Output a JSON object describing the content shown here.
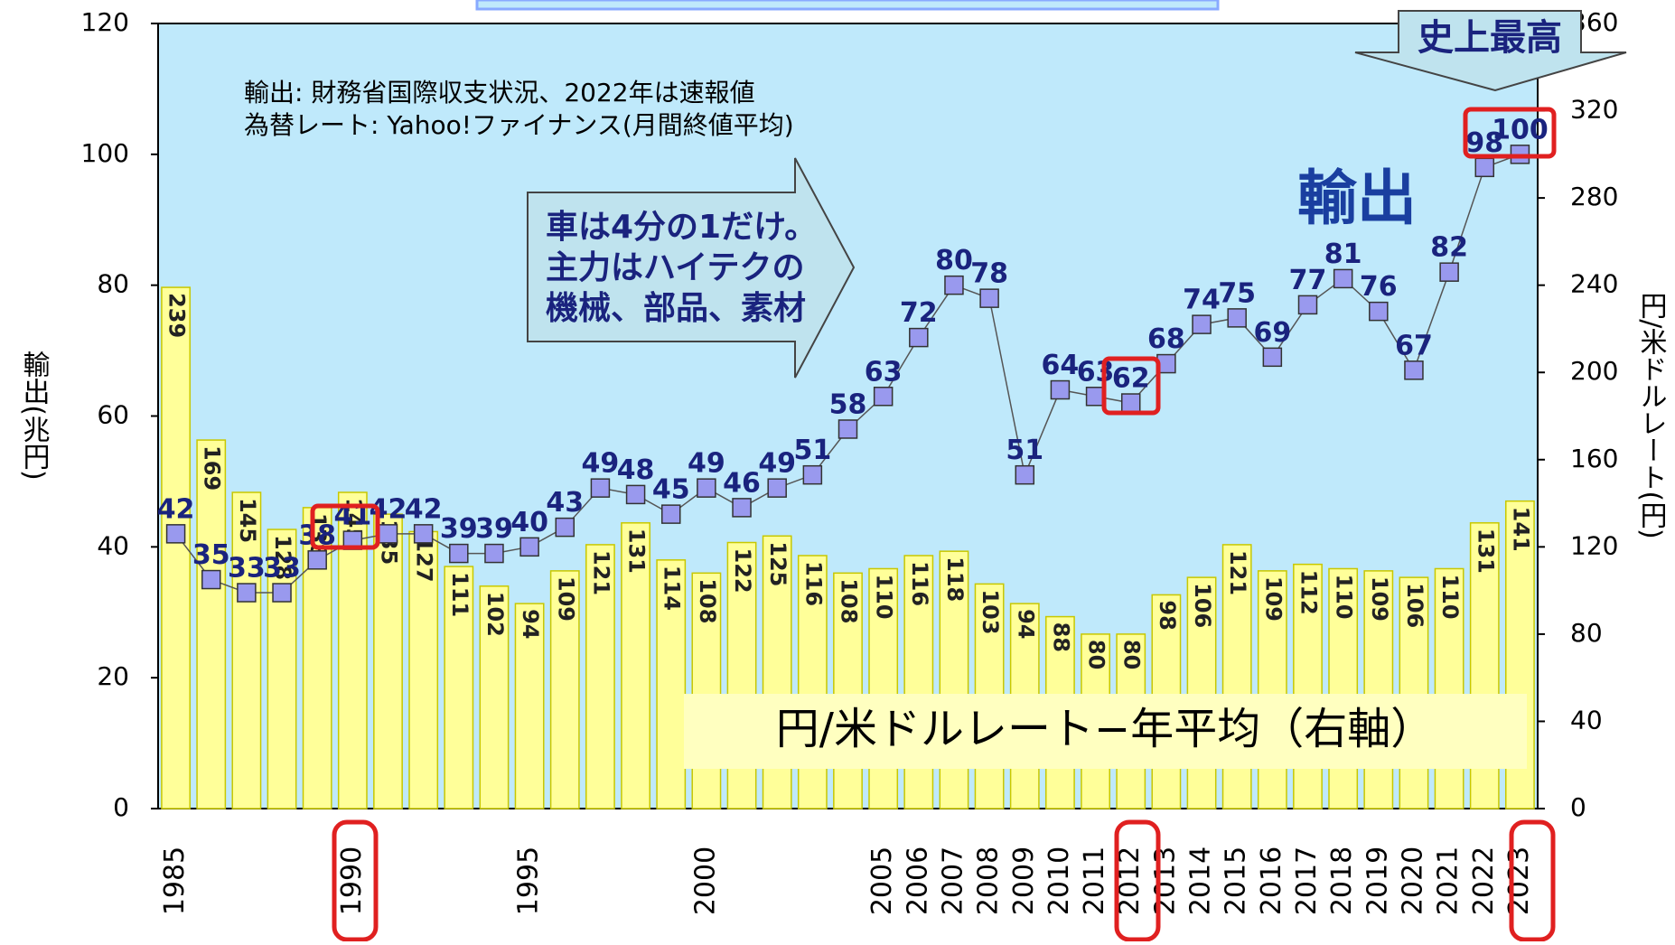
{
  "chart_data": {
    "type": "bar",
    "notes": [
      "輸出: 財務省国際収支状況、2022年は速報値",
      "為替レート: Yahoo!ファイナンス(月間終値平均)"
    ],
    "callout": [
      "車は4分の1だけ。",
      "主力はハイテクの",
      "機械、部品、素材"
    ],
    "record_label": "史上最高",
    "series_title": "輸出",
    "rate_title": "円/米ドルレート−年平均（右軸）",
    "ylabel": "輸出(兆円)",
    "y2label": "円/米ドルレート(円)",
    "categories": [
      "1985",
      null,
      null,
      null,
      null,
      "1990",
      null,
      null,
      null,
      null,
      "1995",
      null,
      null,
      null,
      null,
      "2000",
      null,
      null,
      null,
      null,
      "2005",
      "2006",
      "2007",
      "2008",
      "2009",
      "2010",
      "2011",
      "2012",
      "2013",
      "2014",
      "2015",
      "2016",
      "2017",
      "2018",
      "2019",
      "2020",
      "2021",
      "2022",
      "2023"
    ],
    "series": [
      {
        "name": "円/米ドルレート",
        "type": "bar",
        "axis": "y2",
        "color": "#ffff99",
        "values": [
          239,
          169,
          145,
          128,
          138,
          145,
          135,
          127,
          111,
          102,
          94,
          109,
          121,
          131,
          114,
          108,
          122,
          125,
          116,
          108,
          110,
          116,
          118,
          103,
          94,
          88,
          80,
          80,
          98,
          106,
          121,
          109,
          112,
          110,
          109,
          106,
          110,
          131,
          141
        ]
      },
      {
        "name": "輸出",
        "type": "line",
        "color": "#9999ee",
        "values": [
          42,
          35,
          33,
          33,
          38,
          41,
          42,
          42,
          39,
          39,
          40,
          43,
          49,
          48,
          45,
          49,
          46,
          49,
          51,
          58,
          63,
          72,
          80,
          78,
          51,
          64,
          63,
          62,
          68,
          74,
          75,
          69,
          77,
          81,
          76,
          67,
          82,
          98,
          100
        ]
      }
    ],
    "ylim": [
      0,
      120
    ],
    "yticks": [
      0,
      20,
      40,
      60,
      80,
      100,
      120
    ],
    "y2lim": [
      0,
      360
    ],
    "y2ticks": [
      0,
      40,
      80,
      120,
      160,
      200,
      240,
      280,
      320,
      360
    ]
  }
}
